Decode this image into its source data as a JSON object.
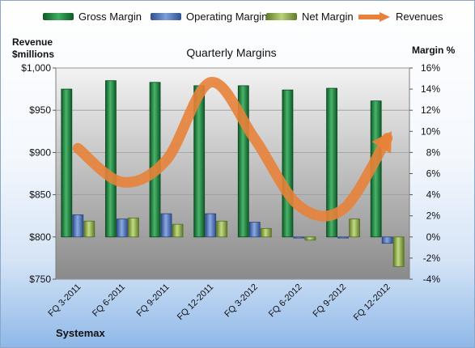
{
  "chart_data": {
    "type": "bar",
    "title": "Quarterly Margins",
    "categories": [
      "FQ 3-2011",
      "FQ 6-2011",
      "FQ 9-2011",
      "FQ 12-2011",
      "FQ 3-2012",
      "FQ 6-2012",
      "FQ 9-2012",
      "FQ 12-2012"
    ],
    "series": [
      {
        "name": "Gross Margin",
        "axis": "left",
        "color": "#1f7a3e",
        "values": [
          975,
          985,
          983,
          979,
          979,
          974,
          976,
          961
        ]
      },
      {
        "name": "Operating Margin",
        "axis": "right",
        "color": "#4a6fb5",
        "values": [
          2.1,
          1.7,
          2.2,
          2.2,
          1.4,
          -0.1,
          -0.1,
          -0.6
        ]
      },
      {
        "name": "Net Margin",
        "axis": "right",
        "color": "#8aa84a",
        "values": [
          1.5,
          1.8,
          1.2,
          1.5,
          0.8,
          -0.3,
          1.7,
          -2.8
        ]
      },
      {
        "name": "Revenues",
        "axis": "left",
        "type": "line",
        "color": "#e8823a",
        "values": [
          905,
          865,
          891,
          983,
          916,
          837,
          833,
          917
        ]
      }
    ],
    "ylabel_left": "Revenue $millions",
    "ylabel_right": "Margin %",
    "ylim_left": [
      750,
      1000
    ],
    "ylim_right": [
      -4,
      16
    ],
    "yticks_left": [
      "$750",
      "$800",
      "$850",
      "$900",
      "$950",
      "$1,000"
    ],
    "yticks_right": [
      "-4%",
      "-2%",
      "0%",
      "2%",
      "4%",
      "6%",
      "8%",
      "10%",
      "12%",
      "14%",
      "16%"
    ],
    "grid": true,
    "legend_position": "top",
    "source": "Systemax"
  }
}
